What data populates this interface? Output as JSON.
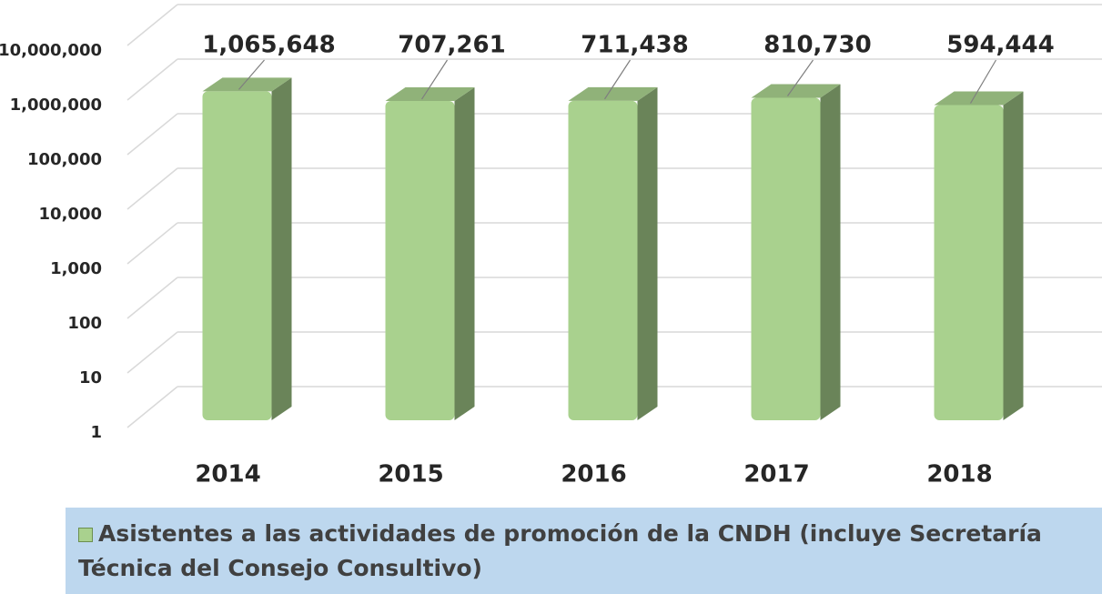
{
  "chart_data": {
    "type": "bar",
    "categories": [
      "2014",
      "2015",
      "2016",
      "2017",
      "2018"
    ],
    "series": [
      {
        "name": "Asistentes a las actividades de promoción de la CNDH (incluye Secretaría Técnica del Consejo Consultivo)",
        "color": "#a9d18e",
        "values": [
          1065648,
          707261,
          711438,
          810730,
          594444
        ],
        "value_labels": [
          "1,065,648",
          "707,261",
          "711,438",
          "810,730",
          "594,444"
        ]
      }
    ],
    "ylim": [
      1,
      10000000
    ],
    "log_scale": true,
    "grid": true,
    "yticks": [
      1,
      10,
      100,
      {
        "value": 1000,
        "label": "1,000"
      },
      {
        "value": 10000,
        "label": "10,000"
      },
      {
        "value": 100000,
        "label": "100,000"
      },
      {
        "value": 1000000,
        "label": "1,000,000"
      },
      {
        "value": 10000000,
        "label": "10,000,000"
      }
    ],
    "legend": "bottom"
  }
}
